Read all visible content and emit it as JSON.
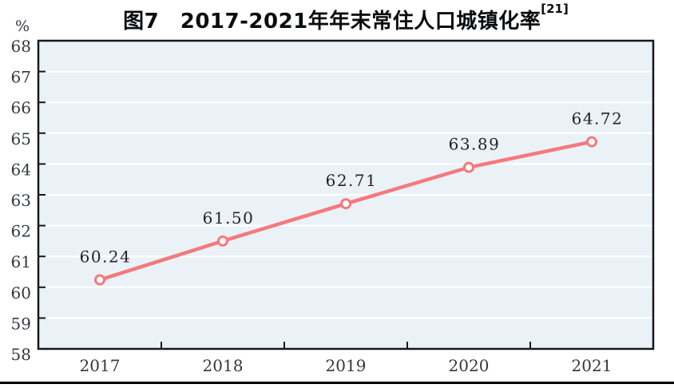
{
  "figure": {
    "title": "图7　2017-2021年年末常住人口城镇化率",
    "title_superscript": "[21]",
    "unit_label": "%"
  },
  "chart_data": {
    "type": "line",
    "title": "图7 2017-2021年年末常住人口城镇化率[21]",
    "categories": [
      "2017",
      "2018",
      "2019",
      "2020",
      "2021"
    ],
    "series": [
      {
        "values": [
          60.24,
          61.5,
          62.71,
          63.89,
          64.72
        ],
        "labels": [
          "60.24",
          "61.50",
          "62.71",
          "63.89",
          "64.72"
        ]
      }
    ],
    "xlabel": "",
    "ylabel": "%",
    "ylim": [
      58,
      68
    ],
    "ytick_step": 1,
    "grid": true,
    "legend": "none",
    "marker": "open-circle",
    "colors": {
      "line": "#f5797d",
      "marker_fill": "#ffffff",
      "plot_bg": "#eaf2f7",
      "gridline": "#ffffff",
      "frame": "#14181f",
      "tick_text": "#333942",
      "value_text": "#20242b"
    }
  }
}
